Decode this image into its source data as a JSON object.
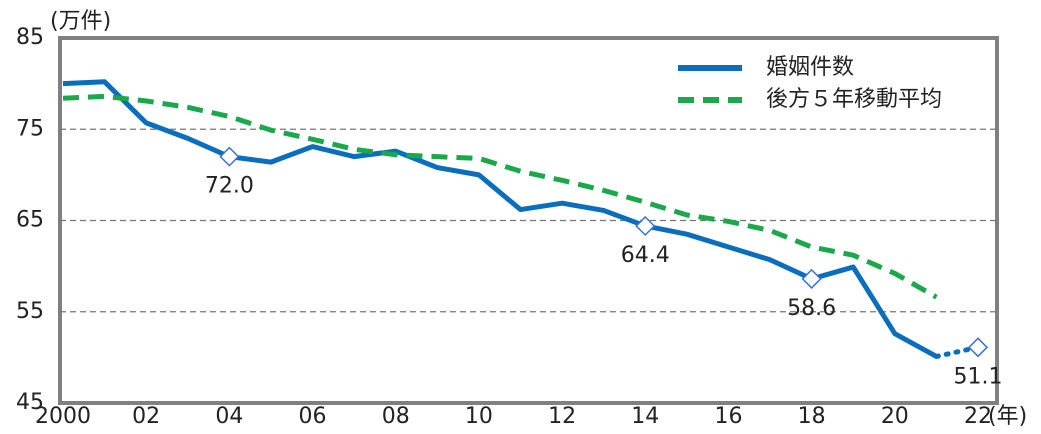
{
  "chart_data": {
    "type": "line",
    "y_unit_label": "(万件)",
    "x_unit_label": "(年)",
    "x": [
      2000,
      2001,
      2002,
      2003,
      2004,
      2005,
      2006,
      2007,
      2008,
      2009,
      2010,
      2011,
      2012,
      2013,
      2014,
      2015,
      2016,
      2017,
      2018,
      2019,
      2020,
      2021,
      2022
    ],
    "series": [
      {
        "name": "婚姻件数",
        "color": "#0a6ebd",
        "style": "solid",
        "dash_last_segment": true,
        "values": [
          80.0,
          80.2,
          75.7,
          74.0,
          72.0,
          71.4,
          73.1,
          72.0,
          72.6,
          70.8,
          70.0,
          66.2,
          66.9,
          66.1,
          64.4,
          63.5,
          62.1,
          60.7,
          58.6,
          59.9,
          52.6,
          50.1,
          51.1
        ],
        "value_labels": [
          null,
          null,
          null,
          null,
          "72.0",
          null,
          null,
          null,
          null,
          null,
          null,
          null,
          null,
          null,
          "64.4",
          null,
          null,
          null,
          "58.6",
          null,
          null,
          null,
          "51.1"
        ]
      },
      {
        "name": "後方５年移動平均",
        "color": "#1aa84a",
        "style": "dashed",
        "values": [
          78.4,
          78.6,
          78.1,
          77.4,
          76.4,
          74.9,
          73.9,
          72.8,
          72.2,
          72.0,
          71.8,
          70.4,
          69.4,
          68.3,
          67.0,
          65.6,
          64.9,
          63.9,
          62.1,
          61.2,
          59.2,
          56.6,
          null
        ]
      }
    ],
    "xlim": [
      2000,
      2022
    ],
    "xticks": [
      {
        "value": 2000,
        "label": "2000"
      },
      {
        "value": 2002,
        "label": "02"
      },
      {
        "value": 2004,
        "label": "04"
      },
      {
        "value": 2006,
        "label": "06"
      },
      {
        "value": 2008,
        "label": "08"
      },
      {
        "value": 2010,
        "label": "10"
      },
      {
        "value": 2012,
        "label": "12"
      },
      {
        "value": 2014,
        "label": "14"
      },
      {
        "value": 2016,
        "label": "16"
      },
      {
        "value": 2018,
        "label": "18"
      },
      {
        "value": 2020,
        "label": "20"
      },
      {
        "value": 2022,
        "label": "22"
      }
    ],
    "ylim": [
      45,
      85
    ],
    "yticks": [
      45,
      55,
      65,
      75,
      85
    ],
    "grid": true,
    "legend": "top-right"
  }
}
